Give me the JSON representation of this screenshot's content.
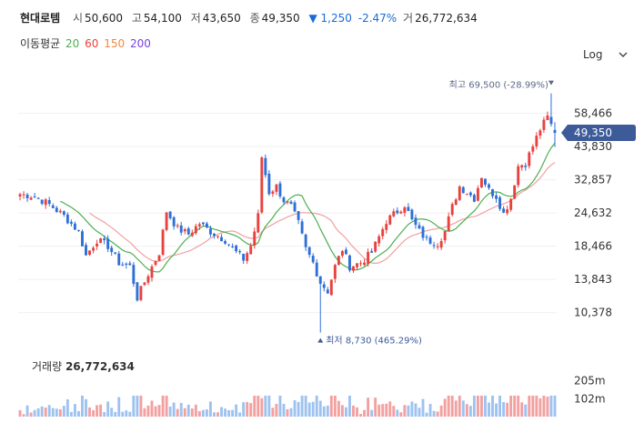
{
  "header": {
    "name": "현대로템",
    "open_label": "시",
    "open": "50,600",
    "high_label": "고",
    "high": "54,100",
    "low_label": "저",
    "low": "43,650",
    "close_label": "종",
    "close": "49,350",
    "change": "▼ 1,250",
    "change_pct": "-2.47%",
    "volume_label": "거",
    "volume": "26,772,634"
  },
  "ma_legend": {
    "label": "이동평균",
    "items": [
      {
        "period": "20",
        "color": "#4caf50"
      },
      {
        "period": "60",
        "color": "#e8423f"
      },
      {
        "period": "150",
        "color": "#f0883e"
      },
      {
        "period": "200",
        "color": "#7b3fe4"
      }
    ]
  },
  "scale_label": "Log",
  "icons": {
    "scale_toggle": "chevron-down-icon",
    "marker_up": "triangle-up-icon",
    "marker_down": "triangle-down-icon"
  },
  "colors": {
    "up": "#e8423f",
    "down": "#2e6fd8",
    "ma20": "#4caf50",
    "ma60": "#f0a0a0",
    "price_tag": "#3d5a99",
    "vol_up": "#f2a0a0",
    "vol_down": "#9ec2f0",
    "high_marker": "#5b6a86",
    "low_marker": "#3d5a99"
  },
  "chart_data": {
    "type": "candlestick",
    "y_scale": "log",
    "y_ticks": [
      58466,
      43830,
      32857,
      24632,
      18466,
      13843,
      10378
    ],
    "y_tick_labels": [
      "58,466",
      "43,830",
      "32,857",
      "24,632",
      "18,466",
      "13,843",
      "10,378"
    ],
    "ylim": [
      8300,
      78000
    ],
    "current_price": 49350,
    "current_price_label": "49,350",
    "high_annotation": {
      "index": 145,
      "value": 69500,
      "text": "최고 69,500 (-28.99%)"
    },
    "low_annotation": {
      "index": 82,
      "value": 8730,
      "text": "최저 8,730 (465.29%)"
    },
    "volume_ticks_label": [
      "205m",
      "102m"
    ],
    "volume_ticks": [
      205,
      102
    ],
    "volume_title": "거래량",
    "volume_value": "26,772,634",
    "anchors": [
      [
        0,
        29000
      ],
      [
        4,
        28500
      ],
      [
        8,
        26500
      ],
      [
        12,
        24000
      ],
      [
        16,
        21000
      ],
      [
        18,
        17000
      ],
      [
        21,
        19500
      ],
      [
        24,
        18500
      ],
      [
        27,
        16000
      ],
      [
        30,
        15500
      ],
      [
        32,
        11800
      ],
      [
        35,
        14500
      ],
      [
        38,
        17500
      ],
      [
        40,
        25000
      ],
      [
        43,
        21500
      ],
      [
        46,
        20500
      ],
      [
        49,
        22500
      ],
      [
        52,
        21000
      ],
      [
        56,
        19500
      ],
      [
        59,
        17500
      ],
      [
        61,
        16500
      ],
      [
        63,
        18500
      ],
      [
        65,
        24000
      ],
      [
        66,
        40000
      ],
      [
        68,
        29500
      ],
      [
        70,
        31000
      ],
      [
        72,
        27500
      ],
      [
        74,
        26000
      ],
      [
        76,
        22500
      ],
      [
        78,
        18000
      ],
      [
        80,
        16000
      ],
      [
        82,
        13500
      ],
      [
        84,
        12500
      ],
      [
        86,
        15500
      ],
      [
        88,
        18000
      ],
      [
        90,
        15500
      ],
      [
        93,
        16000
      ],
      [
        96,
        17500
      ],
      [
        98,
        20000
      ],
      [
        100,
        23000
      ],
      [
        103,
        25000
      ],
      [
        105,
        26500
      ],
      [
        107,
        23000
      ],
      [
        109,
        21000
      ],
      [
        111,
        19500
      ],
      [
        114,
        19000
      ],
      [
        116,
        21000
      ],
      [
        118,
        26000
      ],
      [
        120,
        31000
      ],
      [
        122,
        29500
      ],
      [
        124,
        28000
      ],
      [
        126,
        34000
      ],
      [
        128,
        30000
      ],
      [
        130,
        28500
      ],
      [
        132,
        24500
      ],
      [
        134,
        28000
      ],
      [
        136,
        37000
      ],
      [
        138,
        38000
      ],
      [
        140,
        44000
      ],
      [
        142,
        51000
      ],
      [
        144,
        56500
      ],
      [
        146,
        49350
      ]
    ]
  }
}
